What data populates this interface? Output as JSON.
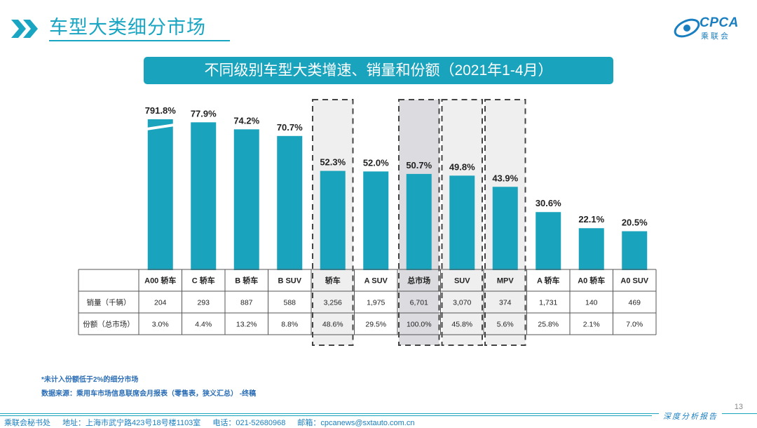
{
  "header": {
    "title": "车型大类细分市场",
    "logo_text": "CPCA",
    "logo_sub": "乘联会"
  },
  "banner": {
    "title": "不同级别车型大类增速、销量和份额（2021年1-4月）"
  },
  "chart_data": {
    "type": "bar",
    "title": "不同级别车型大类增速、销量和份额（2021年1-4月）",
    "categories": [
      "A00 轿车",
      "C 轿车",
      "B 轿车",
      "B SUV",
      "轿车",
      "A SUV",
      "总市场",
      "SUV",
      "MPV",
      "A 轿车",
      "A0 轿车",
      "A0 SUV"
    ],
    "growth_labels": [
      "791.8%",
      "77.9%",
      "74.2%",
      "70.7%",
      "52.3%",
      "52.0%",
      "50.7%",
      "49.8%",
      "43.9%",
      "30.6%",
      "22.1%",
      "20.5%"
    ],
    "growth_values": [
      791.8,
      77.9,
      74.2,
      70.7,
      52.3,
      52.0,
      50.7,
      49.8,
      43.9,
      30.6,
      22.1,
      20.5
    ],
    "axis_break": {
      "category": "A00 轿车",
      "note": "bar truncated with break mark"
    },
    "ylim": [
      0,
      90
    ],
    "highlighted": [
      "轿车",
      "总市场",
      "SUV",
      "MPV"
    ],
    "table": {
      "row_labels": [
        "销量（千辆）",
        "份额（总市场）"
      ],
      "sales": [
        "204",
        "293",
        "887",
        "588",
        "3,256",
        "1,975",
        "6,701",
        "3,070",
        "374",
        "1,731",
        "140",
        "469"
      ],
      "share": [
        "3.0%",
        "4.4%",
        "13.2%",
        "8.8%",
        "48.6%",
        "29.5%",
        "100.0%",
        "45.8%",
        "5.6%",
        "25.8%",
        "2.1%",
        "7.0%"
      ]
    },
    "bar_color": "#1aa3bd"
  },
  "notes": {
    "note1": "*未计入份额低于2%的细分市场",
    "note2": "数据来源：乘用车市场信息联席会月报表（零售表，狭义汇总） -终稿"
  },
  "footer": {
    "org": "乘联会秘书处",
    "address": "地址：上海市武宁路423号18号楼1103室",
    "phone": "电话：021-52680968",
    "email": "邮箱：cpcanews@sxtauto.com.cn",
    "slogan": "深度分析报告",
    "page": "13"
  }
}
